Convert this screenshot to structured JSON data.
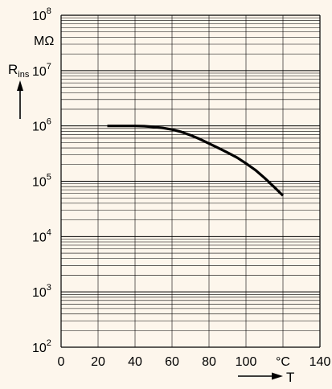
{
  "chart_data": {
    "type": "line",
    "title": "",
    "xlabel": "T",
    "ylabel": "R",
    "ylabel_sub": "ins",
    "yunit": "MΩ",
    "xunit": "°C",
    "xscale": "linear",
    "yscale": "log",
    "xlim": [
      0,
      140
    ],
    "ylim": [
      100,
      100000000
    ],
    "grid": true,
    "x_ticks": [
      "0",
      "20",
      "40",
      "60",
      "80",
      "100",
      "°C",
      "140"
    ],
    "y_ticks": [
      {
        "base": "10",
        "exp": "2"
      },
      {
        "base": "10",
        "exp": "3"
      },
      {
        "base": "10",
        "exp": "4"
      },
      {
        "base": "10",
        "exp": "5"
      },
      {
        "base": "10",
        "exp": "6"
      },
      {
        "base": "10",
        "exp": "7"
      },
      {
        "base": "10",
        "exp": "8"
      }
    ],
    "series": [
      {
        "x": [
          25,
          40,
          45,
          50,
          55,
          60,
          65,
          70,
          75,
          80,
          85,
          90,
          95,
          100,
          105,
          110,
          115,
          120
        ],
        "y": [
          1000000,
          1000000,
          990000,
          960000,
          920000,
          860000,
          780000,
          680000,
          580000,
          480000,
          400000,
          330000,
          270000,
          210000,
          160000,
          115000,
          80000,
          55000
        ]
      }
    ],
    "colors": {
      "background": "#fdf6ec",
      "line": "#000000",
      "grid": "#000000"
    }
  }
}
